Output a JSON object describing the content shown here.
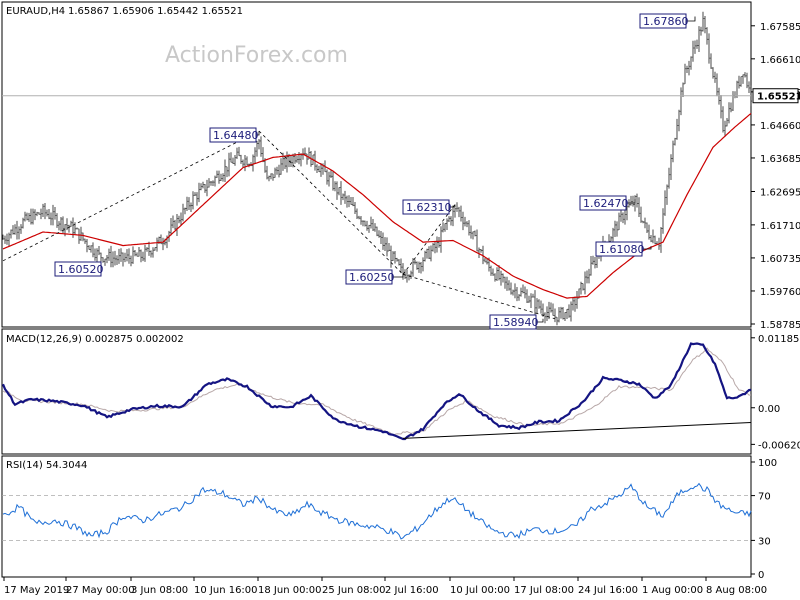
{
  "chart_data": [
    {
      "type": "candlestick",
      "title": "EURAUD,H4",
      "ohlc": "1.65867 1.65906 1.65442 1.65521",
      "watermark": "ActionForex.com",
      "current_price": "1.65521",
      "ylim": [
        1.58785,
        1.6811
      ],
      "y_ticks": [
        "1.67585",
        "1.66610",
        "1.65635",
        "1.64660",
        "1.63685",
        "1.62695",
        "1.61710",
        "1.60735",
        "1.59760",
        "1.58785"
      ],
      "x_ticks": [
        "17 May 2019",
        "27 May 00:00",
        "3 Jun 08:00",
        "10 Jun 16:00",
        "18 Jun 00:00",
        "25 Jun 08:00",
        "2 Jul 16:00",
        "10 Jul 00:00",
        "17 Jul 08:00",
        "24 Jul 16:00",
        "1 Aug 00:00",
        "8 Aug 08:00"
      ],
      "annotations": [
        "1.60520",
        "1.64480",
        "1.60250",
        "1.62310",
        "1.58940",
        "1.62470",
        "1.61080",
        "1.67860"
      ],
      "price_anchors": [
        [
          0,
          1.613
        ],
        [
          10,
          1.618
        ],
        [
          20,
          1.621
        ],
        [
          35,
          1.616
        ],
        [
          48,
          1.608
        ],
        [
          58,
          1.607
        ],
        [
          70,
          1.608
        ],
        [
          82,
          1.614
        ],
        [
          95,
          1.625
        ],
        [
          108,
          1.632
        ],
        [
          117,
          1.637
        ],
        [
          124,
          1.636
        ],
        [
          128,
          1.642
        ],
        [
          132,
          1.63
        ],
        [
          140,
          1.635
        ],
        [
          150,
          1.639
        ],
        [
          160,
          1.633
        ],
        [
          170,
          1.625
        ],
        [
          178,
          1.62
        ],
        [
          186,
          1.615
        ],
        [
          194,
          1.608
        ],
        [
          200,
          1.6025
        ],
        [
          208,
          1.606
        ],
        [
          217,
          1.611
        ],
        [
          222,
          1.618
        ],
        [
          227,
          1.622
        ],
        [
          233,
          1.616
        ],
        [
          242,
          1.605
        ],
        [
          252,
          1.599
        ],
        [
          262,
          1.596
        ],
        [
          270,
          1.592
        ],
        [
          276,
          1.59
        ],
        [
          284,
          1.592
        ],
        [
          292,
          1.602
        ],
        [
          298,
          1.609
        ],
        [
          304,
          1.614
        ],
        [
          312,
          1.622
        ],
        [
          316,
          1.624
        ],
        [
          322,
          1.615
        ],
        [
          328,
          1.612
        ],
        [
          334,
          1.636
        ],
        [
          340,
          1.66
        ],
        [
          346,
          1.67
        ],
        [
          350,
          1.677
        ],
        [
          354,
          1.665
        ],
        [
          360,
          1.646
        ],
        [
          366,
          1.656
        ],
        [
          370,
          1.663
        ],
        [
          374,
          1.655
        ]
      ],
      "ma_anchors": [
        [
          0,
          1.61
        ],
        [
          20,
          1.615
        ],
        [
          40,
          1.614
        ],
        [
          60,
          1.611
        ],
        [
          80,
          1.612
        ],
        [
          100,
          1.623
        ],
        [
          120,
          1.634
        ],
        [
          135,
          1.637
        ],
        [
          150,
          1.638
        ],
        [
          165,
          1.633
        ],
        [
          180,
          1.626
        ],
        [
          195,
          1.618
        ],
        [
          210,
          1.612
        ],
        [
          225,
          1.6125
        ],
        [
          240,
          1.608
        ],
        [
          255,
          1.602
        ],
        [
          270,
          1.598
        ],
        [
          282,
          1.5955
        ],
        [
          292,
          1.596
        ],
        [
          305,
          1.603
        ],
        [
          318,
          1.609
        ],
        [
          330,
          1.612
        ],
        [
          342,
          1.626
        ],
        [
          355,
          1.64
        ],
        [
          366,
          1.646
        ],
        [
          374,
          1.65
        ]
      ]
    },
    {
      "type": "line",
      "title": "MACD(12,26,9) 0.002875 0.002002",
      "ylim": [
        -0.0075,
        0.0125
      ],
      "y_ticks": [
        "0.011856",
        "0.00",
        "-0.006206"
      ],
      "series": [
        {
          "values": [
            [
              0,
              0.0038
            ],
            [
              6,
              0.0006
            ],
            [
              14,
              0.0014
            ],
            [
              24,
              0.0012
            ],
            [
              40,
              0.0004
            ],
            [
              52,
              -0.0016
            ],
            [
              64,
              -0.0003
            ],
            [
              76,
              0.0003
            ],
            [
              90,
              0.0002
            ],
            [
              102,
              0.004
            ],
            [
              112,
              0.0048
            ],
            [
              122,
              0.0036
            ],
            [
              134,
              0.0003
            ],
            [
              144,
              0.0001
            ],
            [
              154,
              0.002
            ],
            [
              166,
              -0.002
            ],
            [
              178,
              -0.0032
            ],
            [
              190,
              -0.004
            ],
            [
              200,
              -0.0054
            ],
            [
              210,
              -0.0036
            ],
            [
              220,
              0.0004
            ],
            [
              228,
              0.0024
            ],
            [
              238,
              -0.0006
            ],
            [
              248,
              -0.003
            ],
            [
              258,
              -0.0034
            ],
            [
              268,
              -0.0024
            ],
            [
              278,
              -0.0022
            ],
            [
              290,
              0.001
            ],
            [
              300,
              0.005
            ],
            [
              310,
              0.0046
            ],
            [
              318,
              0.004
            ],
            [
              326,
              0.0016
            ],
            [
              334,
              0.0038
            ],
            [
              344,
              0.0108
            ],
            [
              350,
              0.0106
            ],
            [
              356,
              0.0074
            ],
            [
              362,
              0.0016
            ],
            [
              368,
              0.0018
            ],
            [
              374,
              0.0032
            ]
          ]
        },
        {
          "values": [
            [
              0,
              0.003
            ],
            [
              10,
              0.0012
            ],
            [
              22,
              0.001
            ],
            [
              40,
              0.0006
            ],
            [
              55,
              -0.0006
            ],
            [
              70,
              -0.0004
            ],
            [
              90,
              0.0002
            ],
            [
              105,
              0.003
            ],
            [
              118,
              0.004
            ],
            [
              132,
              0.002
            ],
            [
              145,
              0.0008
            ],
            [
              160,
              0.0005
            ],
            [
              175,
              -0.002
            ],
            [
              195,
              -0.0044
            ],
            [
              210,
              -0.004
            ],
            [
              222,
              -0.0006
            ],
            [
              232,
              0.0012
            ],
            [
              245,
              -0.0014
            ],
            [
              262,
              -0.003
            ],
            [
              280,
              -0.0026
            ],
            [
              295,
              0.0
            ],
            [
              308,
              0.0036
            ],
            [
              322,
              0.0034
            ],
            [
              334,
              0.003
            ],
            [
              344,
              0.0078
            ],
            [
              352,
              0.01
            ],
            [
              360,
              0.0076
            ],
            [
              368,
              0.003
            ],
            [
              374,
              0.0022
            ]
          ]
        }
      ],
      "trendline": [
        [
          200,
          -0.0052
        ],
        [
          374,
          -0.002
        ]
      ]
    },
    {
      "type": "line",
      "title": "RSI(14) 54.3044",
      "ylim": [
        0,
        100
      ],
      "y_ticks": [
        "100",
        "70",
        "30",
        "0"
      ],
      "series": [
        {
          "values": [
            [
              0,
              52
            ],
            [
              8,
              60
            ],
            [
              16,
              45
            ],
            [
              26,
              48
            ],
            [
              36,
              42
            ],
            [
              44,
              34
            ],
            [
              52,
              38
            ],
            [
              60,
              52
            ],
            [
              70,
              48
            ],
            [
              80,
              54
            ],
            [
              90,
              60
            ],
            [
              100,
              75
            ],
            [
              110,
              72
            ],
            [
              120,
              62
            ],
            [
              128,
              68
            ],
            [
              136,
              56
            ],
            [
              144,
              52
            ],
            [
              152,
              62
            ],
            [
              160,
              54
            ],
            [
              168,
              48
            ],
            [
              178,
              44
            ],
            [
              186,
              42
            ],
            [
              194,
              38
            ],
            [
              200,
              32
            ],
            [
              208,
              42
            ],
            [
              218,
              60
            ],
            [
              224,
              68
            ],
            [
              230,
              60
            ],
            [
              238,
              48
            ],
            [
              246,
              38
            ],
            [
              256,
              34
            ],
            [
              266,
              40
            ],
            [
              276,
              38
            ],
            [
              286,
              42
            ],
            [
              294,
              58
            ],
            [
              300,
              62
            ],
            [
              308,
              70
            ],
            [
              314,
              78
            ],
            [
              322,
              60
            ],
            [
              330,
              52
            ],
            [
              338,
              72
            ],
            [
              346,
              80
            ],
            [
              352,
              75
            ],
            [
              358,
              62
            ],
            [
              364,
              56
            ],
            [
              368,
              54
            ],
            [
              374,
              54
            ]
          ]
        }
      ]
    }
  ]
}
